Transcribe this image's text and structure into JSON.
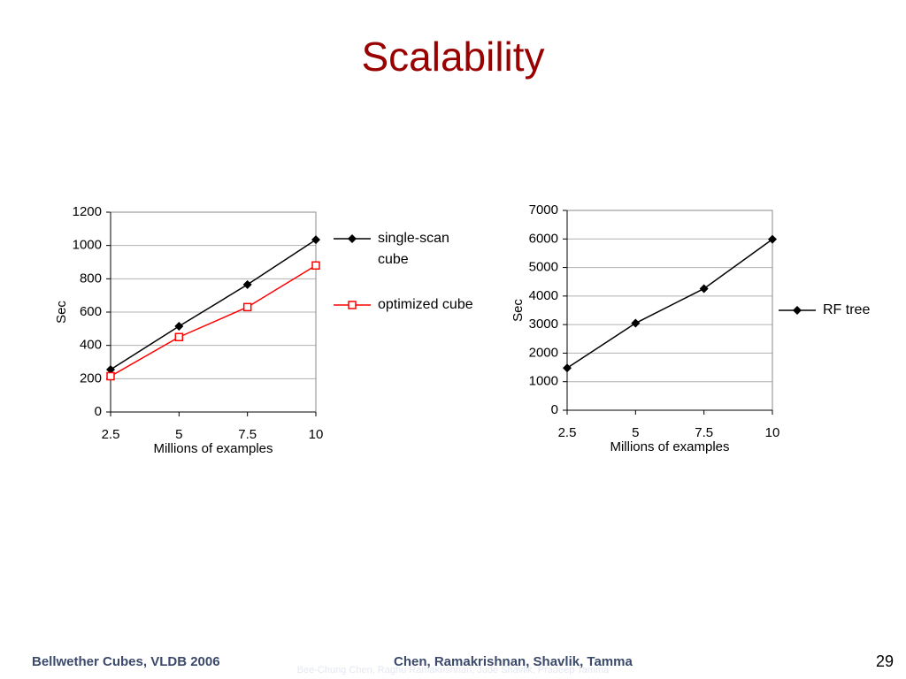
{
  "title": "Scalability",
  "chart_data": [
    {
      "type": "line",
      "xlabel": "Millions of examples",
      "ylabel": "Sec",
      "x": [
        2.5,
        5,
        7.5,
        10
      ],
      "xlim": [
        2.5,
        10
      ],
      "xticks": [
        2.5,
        5,
        7.5,
        10
      ],
      "ylim": [
        0,
        1200
      ],
      "yticks": [
        0,
        200,
        400,
        600,
        800,
        1000,
        1200
      ],
      "grid": true,
      "series": [
        {
          "name": "single-scan cube",
          "color": "#000000",
          "marker": "diamond",
          "values": [
            255,
            515,
            765,
            1035
          ]
        },
        {
          "name": "optimized cube",
          "color": "#ff0000",
          "marker": "square",
          "values": [
            215,
            450,
            630,
            880
          ]
        }
      ]
    },
    {
      "type": "line",
      "xlabel": "Millions of examples",
      "ylabel": "Sec",
      "x": [
        2.5,
        5,
        7.5,
        10
      ],
      "xlim": [
        2.5,
        10
      ],
      "xticks": [
        2.5,
        5,
        7.5,
        10
      ],
      "ylim": [
        0,
        7000
      ],
      "yticks": [
        0,
        1000,
        2000,
        3000,
        4000,
        5000,
        6000,
        7000
      ],
      "grid": true,
      "series": [
        {
          "name": "RF tree",
          "color": "#000000",
          "marker": "diamond",
          "values": [
            1480,
            3050,
            4260,
            5990
          ]
        }
      ]
    }
  ],
  "footer": {
    "left": "Bellwether Cubes, VLDB 2006",
    "center": "Chen, Ramakrishnan, Shavlik, Tamma",
    "page": "29",
    "watermark": "Bee-Chung Chen, Raghu Ramakrishnan, Jude Shavlik, Pradeep Tamma"
  }
}
